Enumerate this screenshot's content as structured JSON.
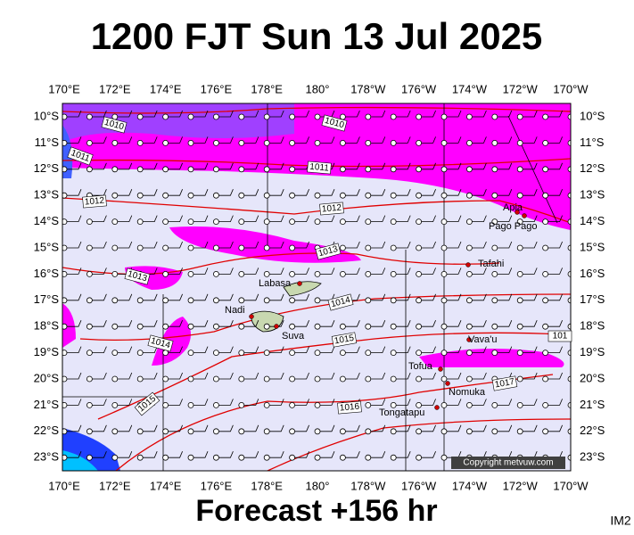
{
  "header": {
    "title": "1200 FJT Sun 13 Jul 2025"
  },
  "footer": {
    "forecast": "Forecast +156 hr",
    "image_id": "IM2",
    "copyright": "Copyright metvuw.com"
  },
  "map": {
    "longitudes": [
      "170°E",
      "172°E",
      "174°E",
      "176°E",
      "178°E",
      "180°",
      "178°W",
      "176°W",
      "174°W",
      "172°W",
      "170°W"
    ],
    "latitudes": [
      "10°S",
      "11°S",
      "12°S",
      "13°S",
      "14°S",
      "15°S",
      "16°S",
      "17°S",
      "18°S",
      "19°S",
      "20°S",
      "21°S",
      "22°S",
      "23°S"
    ],
    "places": [
      "Apia",
      "Pago Pago",
      "Tafahi",
      "Labasa",
      "Nadi",
      "Suva",
      "Vava'u",
      "Tofua",
      "Nomuka",
      "Tongatapu"
    ],
    "isobar_labels": [
      "1010",
      "1010",
      "1011",
      "1011",
      "1012",
      "1012",
      "1013",
      "1013",
      "1014",
      "1014",
      "1015",
      "1015",
      "1016",
      "1017",
      "101"
    ]
  }
}
